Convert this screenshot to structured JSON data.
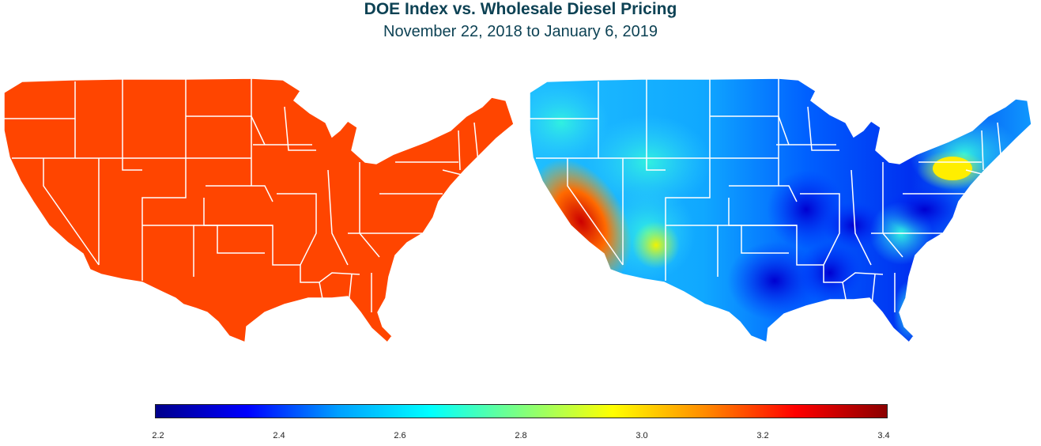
{
  "title": "DOE Index vs. Wholesale Diesel Pricing",
  "subtitle": "November 22, 2018 to January 6, 2019",
  "left_map": {
    "description_color": "#ff4500"
  },
  "legend": {
    "ticks": [
      "2.2",
      "2.4",
      "2.6",
      "2.8",
      "3.0",
      "3.2",
      "3.4"
    ],
    "min": 2.2,
    "max": 3.4,
    "colors": [
      "#00008b",
      "#0000ff",
      "#00a0ff",
      "#00ffff",
      "#7fff7f",
      "#ffff00",
      "#ff8c00",
      "#ff0000",
      "#8b0000"
    ]
  }
}
